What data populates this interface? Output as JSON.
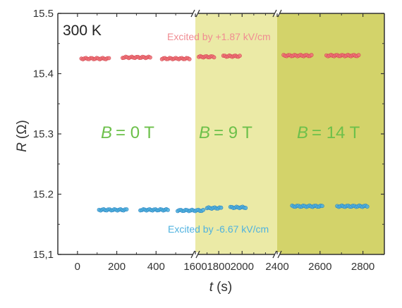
{
  "chart_data": {
    "type": "scatter",
    "temperature_label": "300 K",
    "ylabel_symbol": "R",
    "ylabel_unit": "(Ω)",
    "xlabel_symbol": "t",
    "xlabel_unit": "(s)",
    "ylim": [
      15.1,
      15.5
    ],
    "y_ticks": [
      "15,1",
      "15.2",
      "15.3",
      "15.4",
      "15.5"
    ],
    "y_tick_values": [
      15.1,
      15.2,
      15.3,
      15.4,
      15.5
    ],
    "x_segments": [
      {
        "range": [
          -100,
          600
        ],
        "ticks": [
          0,
          200,
          400
        ]
      },
      {
        "range": [
          1600,
          2300
        ],
        "ticks": [
          1600,
          1800,
          2000
        ]
      },
      {
        "range": [
          2400,
          2900
        ],
        "ticks": [
          2400,
          2600,
          2800
        ]
      }
    ],
    "regions": [
      {
        "label_symbol": "B",
        "label_value": "= 0 T",
        "shaded": false,
        "color": "#ffffff"
      },
      {
        "label_symbol": "B",
        "label_value": "= 9 T",
        "shaded": true,
        "color": "#ebeaa6"
      },
      {
        "label_symbol": "B",
        "label_value": "= 14 T",
        "shaded": true,
        "color": "#d3d36a"
      }
    ],
    "series": [
      {
        "name": "Excited by +1.87 kV/cm",
        "color": "#f0727a",
        "dark_color": "#d4484f",
        "label_color": "#f08c92",
        "clusters": [
          {
            "x_start": 20,
            "x_end": 160,
            "y": 15.425
          },
          {
            "x_start": 230,
            "x_end": 370,
            "y": 15.427
          },
          {
            "x_start": 430,
            "x_end": 570,
            "y": 15.425
          },
          {
            "x_start": 1630,
            "x_end": 1760,
            "y": 15.428
          },
          {
            "x_start": 1840,
            "x_end": 1980,
            "y": 15.429
          },
          {
            "x_start": 2430,
            "x_end": 2560,
            "y": 15.43
          },
          {
            "x_start": 2630,
            "x_end": 2780,
            "y": 15.43
          }
        ]
      },
      {
        "name": "Excited by -6.67 kV/cm",
        "color": "#4fb2df",
        "dark_color": "#2b84c0",
        "label_color": "#4fb2df",
        "clusters": [
          {
            "x_start": 110,
            "x_end": 250,
            "y": 15.174
          },
          {
            "x_start": 320,
            "x_end": 460,
            "y": 15.174
          },
          {
            "x_start": 510,
            "x_end": 640,
            "y": 15.173
          },
          {
            "x_start": 1700,
            "x_end": 1820,
            "y": 15.177
          },
          {
            "x_start": 1900,
            "x_end": 2030,
            "y": 15.178
          },
          {
            "x_start": 2470,
            "x_end": 2610,
            "y": 15.18
          },
          {
            "x_start": 2680,
            "x_end": 2820,
            "y": 15.18
          }
        ]
      }
    ]
  }
}
